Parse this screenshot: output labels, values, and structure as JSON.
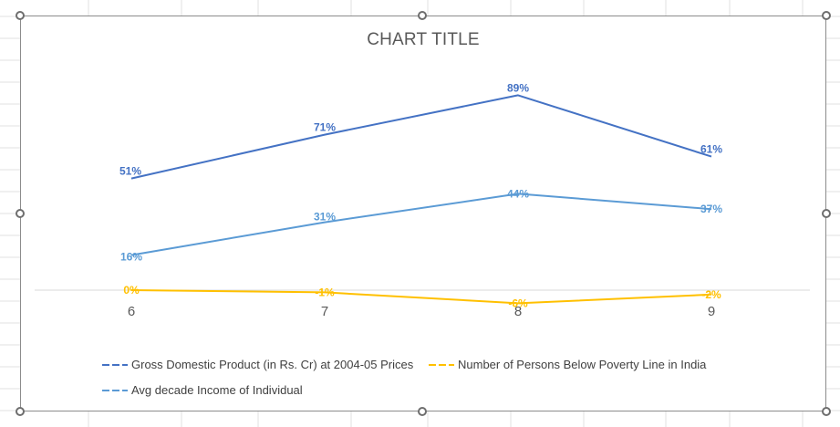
{
  "chart_data": {
    "type": "line",
    "title": "CHART TITLE",
    "categories": [
      "6",
      "7",
      "8",
      "9"
    ],
    "series": [
      {
        "name": "Gross Domestic Product (in Rs. Cr) at 2004-05 Prices",
        "values": [
          51,
          71,
          89,
          61
        ],
        "labels": [
          "51%",
          "71%",
          "89%",
          "61%"
        ],
        "color": "#4472C4"
      },
      {
        "name": "Number of Persons Below Poverty Line in India",
        "values": [
          0,
          -1,
          -6,
          -2
        ],
        "labels": [
          "0%",
          "-1%",
          "-6%",
          "-2%"
        ],
        "color": "#FFC000"
      },
      {
        "name": "Avg decade Income of Individual",
        "values": [
          16,
          31,
          44,
          37
        ],
        "labels": [
          "16%",
          "31%",
          "44%",
          "37%"
        ],
        "color": "#5B9BD5"
      }
    ],
    "legend_position": "bottom",
    "gridlines": false
  },
  "colors": {
    "axis_line": "#d9d9d9",
    "tick_text": "#595959",
    "sheet_grid": "#e1e1e1"
  }
}
